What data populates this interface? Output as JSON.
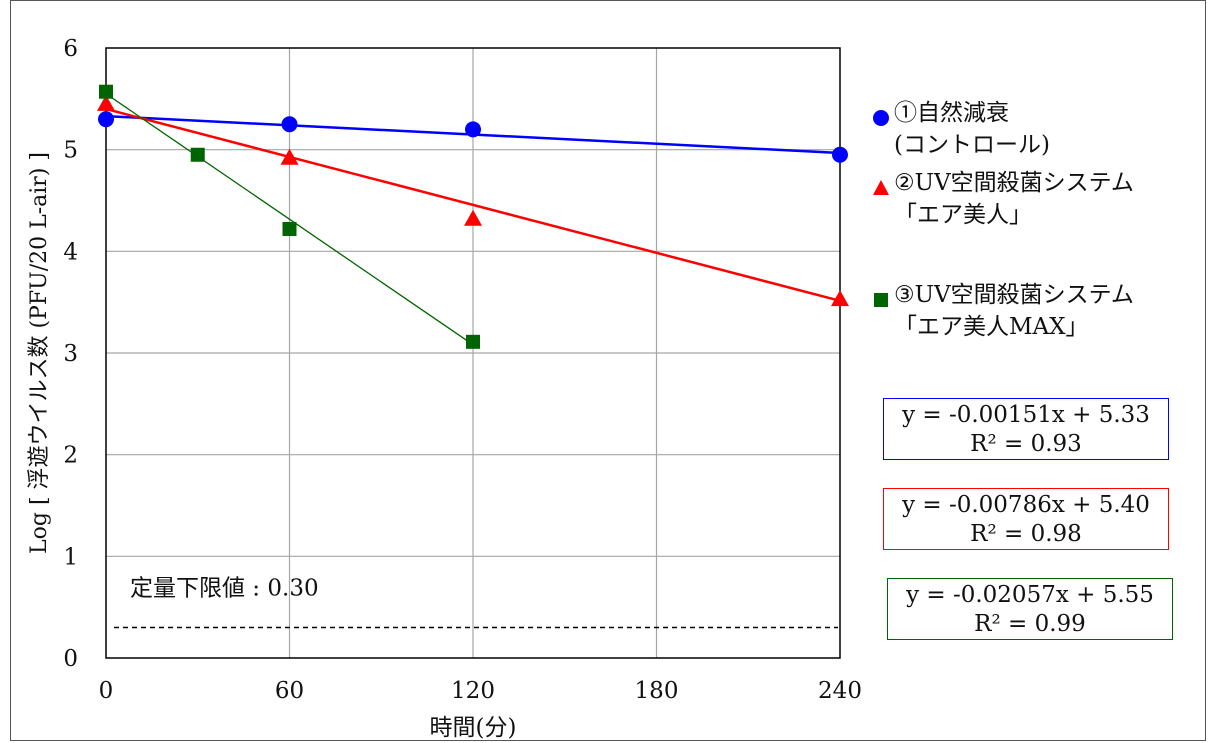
{
  "chart_data": {
    "type": "line",
    "xlabel": "時間(分)",
    "ylabel": "Log [ 浮遊ウイルス数 (PFU/20 L-air) ]",
    "xlim": [
      0,
      240
    ],
    "ylim": [
      0,
      6
    ],
    "xticks": [
      0,
      60,
      120,
      180,
      240
    ],
    "yticks": [
      0,
      1,
      2,
      3,
      4,
      5,
      6
    ],
    "grid": true,
    "series": [
      {
        "name": "①自然減衰 (コントロール)",
        "label_lines": [
          "①自然減衰",
          "(コントロール)"
        ],
        "color": "#0000ff",
        "marker": "circle",
        "x": [
          0,
          60,
          120,
          240
        ],
        "y": [
          5.3,
          5.25,
          5.2,
          4.95
        ],
        "trend": {
          "slope": -0.00151,
          "intercept": 5.33,
          "x_range": [
            0,
            240
          ],
          "stroke_width": 2.5
        },
        "equation": "y = -0.00151x + 5.33",
        "r2": "R² = 0.93"
      },
      {
        "name": "②UV空間殺菌システム 「エア美人」",
        "label_lines": [
          "②UV空間殺菌システム",
          "「エア美人」"
        ],
        "color": "#ff0000",
        "marker": "triangle",
        "x": [
          0,
          60,
          120,
          240
        ],
        "y": [
          5.45,
          4.92,
          4.32,
          3.53
        ],
        "trend": {
          "slope": -0.00786,
          "intercept": 5.4,
          "x_range": [
            0,
            240
          ],
          "stroke_width": 2.5
        },
        "equation": "y = -0.00786x + 5.40",
        "r2": "R² = 0.98"
      },
      {
        "name": "③UV空間殺菌システム 「エア美人MAX」",
        "label_lines": [
          "③UV空間殺菌システム",
          "「エア美人MAX」"
        ],
        "color": "#006400",
        "marker": "square",
        "x": [
          0,
          30,
          60,
          120
        ],
        "y": [
          5.57,
          4.95,
          4.22,
          3.11
        ],
        "trend": {
          "slope": -0.02057,
          "intercept": 5.55,
          "x_range": [
            0,
            120
          ],
          "stroke_width": 1.3
        },
        "equation": "y = -0.02057x + 5.55",
        "r2": "R² = 0.99"
      }
    ],
    "reference_line": {
      "y": 0.3,
      "label": "定量下限値 : 0.30",
      "style": "dashed"
    }
  }
}
